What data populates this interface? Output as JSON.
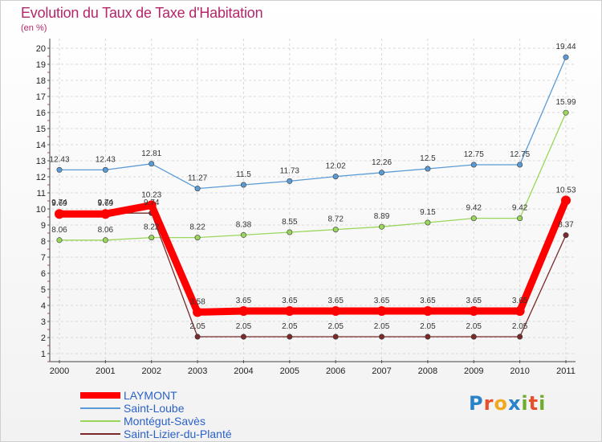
{
  "header": {
    "title": "Evolution du Taux de Taxe d'Habitation",
    "subtitle": "(en %)"
  },
  "logo": {
    "text": "Proxiti"
  },
  "chart_data": {
    "type": "line",
    "title": "Evolution du Taux de Taxe d'Habitation",
    "subtitle": "(en %)",
    "x": [
      "2000",
      "2001",
      "2002",
      "2003",
      "2004",
      "2005",
      "2006",
      "2007",
      "2008",
      "2009",
      "2010",
      "2011"
    ],
    "ylim": [
      1,
      20
    ],
    "yticks": [
      1,
      2,
      3,
      4,
      5,
      6,
      7,
      8,
      9,
      10,
      11,
      12,
      13,
      14,
      15,
      16,
      17,
      18,
      19,
      20
    ],
    "grid": true,
    "legend_position": "bottom",
    "series": [
      {
        "name": "Saint-Loube",
        "color": "#5b9bd5",
        "values": [
          12.43,
          12.43,
          12.81,
          11.27,
          11.5,
          11.73,
          12.02,
          12.26,
          12.5,
          12.75,
          12.75,
          19.44
        ],
        "labels": [
          "12.43",
          "12.43",
          "12.81",
          "11.27",
          "11.5",
          "11.73",
          "12.02",
          "12.26",
          "12.5",
          "12.75",
          "12.75",
          "19.44"
        ]
      },
      {
        "name": "Montégut-Savès",
        "color": "#9ad65b",
        "values": [
          8.06,
          8.06,
          8.22,
          8.22,
          8.38,
          8.55,
          8.72,
          8.89,
          9.15,
          9.42,
          9.42,
          15.99
        ],
        "labels": [
          "8.06",
          "8.06",
          "8.22",
          "8.22",
          "8.38",
          "8.55",
          "8.72",
          "8.89",
          "9.15",
          "9.42",
          "9.42",
          "15.99"
        ]
      },
      {
        "name": "Saint-Lizier-du-Planté",
        "color": "#7a2a2a",
        "values": [
          9.74,
          9.74,
          9.74,
          2.05,
          2.05,
          2.05,
          2.05,
          2.05,
          2.05,
          2.05,
          2.05,
          8.37
        ],
        "labels": [
          "9.74",
          "9.74",
          "9.74",
          "2.05",
          "2.05",
          "2.05",
          "2.05",
          "2.05",
          "2.05",
          "2.05",
          "2.05",
          "8.37"
        ]
      },
      {
        "name": "LAYMONT",
        "color": "#ff0000",
        "values": [
          9.69,
          9.69,
          10.23,
          3.58,
          3.65,
          3.65,
          3.65,
          3.65,
          3.65,
          3.65,
          3.65,
          10.53
        ],
        "labels": [
          "9.69",
          "9.69",
          "10.23",
          "3.58",
          "3.65",
          "3.65",
          "3.65",
          "3.65",
          "3.65",
          "3.65",
          "3.65",
          "10.53"
        ]
      }
    ],
    "legend": [
      {
        "name": "LAYMONT",
        "color": "#ff0000"
      },
      {
        "name": "Saint-Loube",
        "color": "#5b9bd5"
      },
      {
        "name": "Montégut-Savès",
        "color": "#9ad65b"
      },
      {
        "name": "Saint-Lizier-du-Planté",
        "color": "#7a2a2a"
      }
    ]
  }
}
